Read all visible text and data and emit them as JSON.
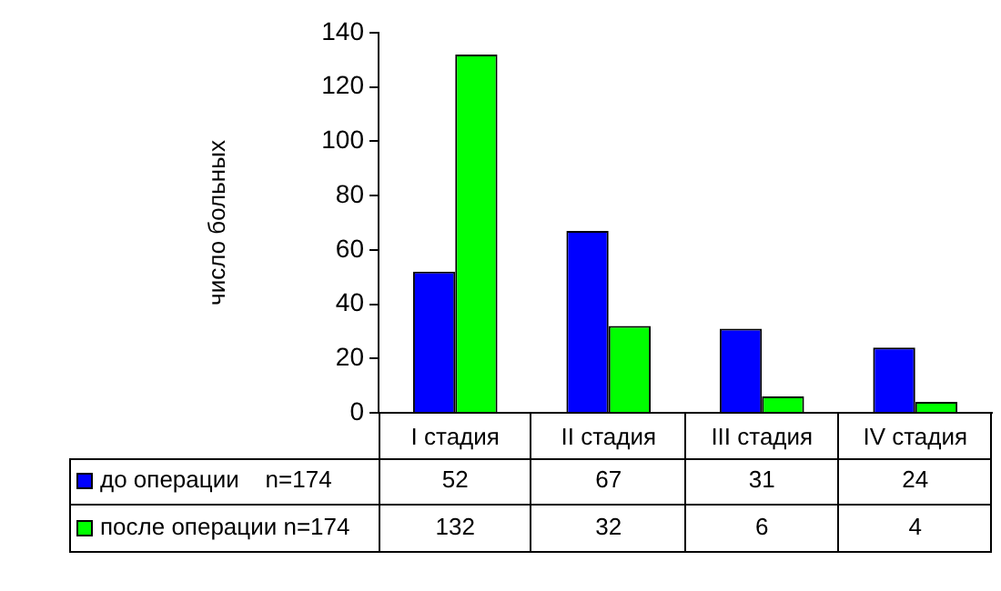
{
  "chart_data": {
    "type": "bar",
    "ylabel": "число больных",
    "categories": [
      "I стадия",
      "II стадия",
      "III стадия",
      "IV стадия"
    ],
    "series": [
      {
        "name": "до операции    n=174",
        "color": "#0000ff",
        "values": [
          52,
          67,
          31,
          24
        ]
      },
      {
        "name": "после операции n=174",
        "color": "#00ff00",
        "values": [
          132,
          32,
          6,
          4
        ]
      }
    ],
    "ylim": [
      0,
      140
    ],
    "yticks": [
      0,
      20,
      40,
      60,
      80,
      100,
      120,
      140
    ],
    "grid": false,
    "legend": "bottom",
    "data_labels": true
  }
}
